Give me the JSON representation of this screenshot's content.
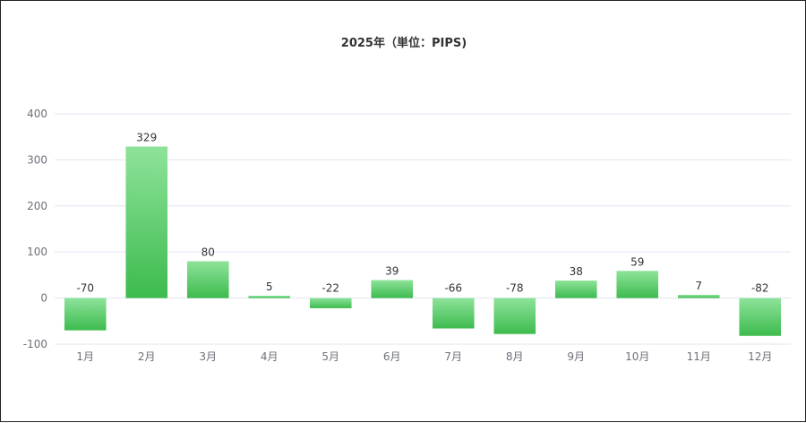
{
  "chart_data": {
    "type": "bar",
    "title": "2025年（単位：PIPS)",
    "categories": [
      "1月",
      "2月",
      "3月",
      "4月",
      "5月",
      "6月",
      "7月",
      "8月",
      "9月",
      "10月",
      "11月",
      "12月"
    ],
    "values": [
      -70,
      329,
      80,
      5,
      -22,
      39,
      -66,
      -78,
      38,
      59,
      7,
      -82
    ],
    "ylim": [
      -100,
      400
    ],
    "yticks": [
      -100,
      0,
      100,
      200,
      300,
      400
    ],
    "grid": true,
    "colors": {
      "bar_top": "#8ee39a",
      "bar_bottom": "#3dbb4e",
      "grid": "#e0e6f1",
      "axis_text": "#6e7079"
    }
  }
}
